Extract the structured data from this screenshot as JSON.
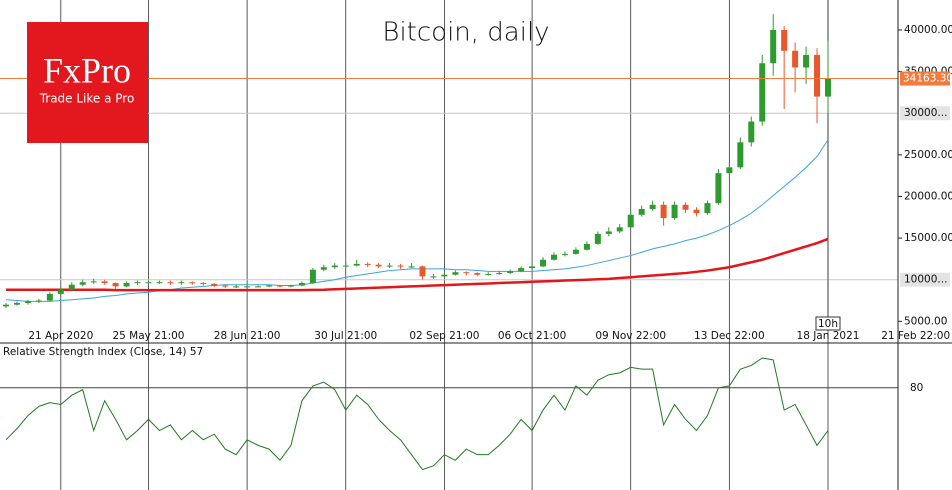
{
  "logo": {
    "name": "FxPro",
    "tagline": "Trade Like a Pro"
  },
  "chart_data": [
    {
      "type": "candlestick",
      "title": "Bitcoin, daily",
      "categories": [
        null,
        null,
        null,
        null,
        null,
        "21 Apr 2020",
        null,
        null,
        null,
        null,
        null,
        null,
        null,
        "25 May 21:00",
        null,
        null,
        null,
        null,
        null,
        null,
        null,
        null,
        "28 Jun 21:00",
        null,
        null,
        null,
        null,
        null,
        null,
        null,
        null,
        "30 Jul 21:00",
        null,
        null,
        null,
        null,
        null,
        null,
        null,
        null,
        "02 Sep 21:00",
        null,
        null,
        null,
        null,
        null,
        null,
        null,
        "06 Oct 21:00",
        null,
        null,
        null,
        null,
        null,
        null,
        null,
        null,
        "09 Nov 22:00",
        null,
        null,
        null,
        null,
        null,
        null,
        null,
        null,
        "13 Dec 22:00",
        null,
        null,
        null,
        null,
        null,
        null,
        null,
        null,
        "18 Jan 2021",
        null,
        null,
        null,
        null,
        null,
        null,
        null,
        "21 Feb 22:00"
      ],
      "open": [
        6800,
        7000,
        7200,
        7400,
        7500,
        8300,
        8800,
        9400,
        9700,
        9800,
        9600,
        9200,
        9600,
        9700,
        9700,
        9700,
        9600,
        9700,
        9600,
        9500,
        9300,
        9200,
        9200,
        9200,
        9200,
        9300,
        9200,
        9300,
        9600,
        11200,
        11500,
        11700,
        11700,
        11900,
        11800,
        11600,
        11700,
        11600,
        11600,
        10400,
        10400,
        10600,
        10900,
        10800,
        10600,
        10700,
        10800,
        11000,
        11400,
        11600,
        12400,
        13000,
        13100,
        13600,
        14300,
        15500,
        15800,
        16300,
        17800,
        18500,
        19000,
        17400,
        19000,
        18400,
        18000,
        19200,
        22800,
        23500,
        26500,
        29000,
        36000,
        40000,
        37500,
        35500,
        37000,
        32000,
        null,
        null,
        null,
        null,
        null,
        null,
        null,
        null
      ],
      "high": [
        7200,
        7400,
        7600,
        7700,
        8500,
        9100,
        9700,
        10000,
        10100,
        10000,
        9700,
        9800,
        9900,
        9900,
        9900,
        9900,
        9900,
        9800,
        9700,
        9600,
        9400,
        9400,
        9400,
        9300,
        9400,
        9400,
        9400,
        9800,
        11400,
        11800,
        12000,
        12100,
        12400,
        12100,
        12000,
        12000,
        11900,
        12000,
        11700,
        10700,
        10800,
        11100,
        11000,
        10900,
        10900,
        11000,
        11200,
        11600,
        11800,
        12700,
        13300,
        13400,
        13900,
        14600,
        15800,
        16300,
        16700,
        18200,
        18900,
        19500,
        19400,
        19400,
        19300,
        18700,
        19500,
        23300,
        24100,
        27100,
        29600,
        37000,
        41900,
        40500,
        38500,
        38000,
        37800,
        38700,
        null,
        null,
        null,
        null,
        null,
        null,
        null,
        null
      ],
      "low": [
        6600,
        6900,
        7000,
        7200,
        7400,
        8100,
        8600,
        9200,
        9500,
        9400,
        8900,
        9100,
        9400,
        9500,
        9500,
        9400,
        9400,
        9400,
        9300,
        9100,
        9000,
        9000,
        9000,
        9100,
        9100,
        9100,
        9100,
        9200,
        9500,
        11000,
        11300,
        11400,
        11600,
        11500,
        11400,
        11400,
        11300,
        11400,
        10000,
        10100,
        10200,
        10500,
        10500,
        10400,
        10500,
        10600,
        10700,
        10900,
        11300,
        11500,
        12300,
        12800,
        13000,
        13500,
        14200,
        15200,
        15600,
        16200,
        17600,
        18300,
        16500,
        17200,
        18000,
        17600,
        17800,
        19000,
        22300,
        23300,
        26000,
        28500,
        34500,
        30500,
        32500,
        33500,
        28800,
        30000,
        null,
        null,
        null,
        null,
        null,
        null,
        null,
        null
      ],
      "close": [
        7000,
        7200,
        7400,
        7500,
        8300,
        8800,
        9400,
        9700,
        9800,
        9600,
        9200,
        9600,
        9700,
        9700,
        9700,
        9600,
        9700,
        9600,
        9500,
        9300,
        9200,
        9200,
        9200,
        9200,
        9300,
        9200,
        9300,
        9600,
        11200,
        11500,
        11700,
        11700,
        11900,
        11800,
        11600,
        11700,
        11600,
        11600,
        10400,
        10400,
        10600,
        10900,
        10800,
        10600,
        10700,
        10800,
        11000,
        11400,
        11600,
        12400,
        13000,
        13100,
        13600,
        14300,
        15500,
        15800,
        16300,
        17800,
        18500,
        19000,
        17400,
        19000,
        18400,
        18000,
        19200,
        22800,
        23500,
        26500,
        29000,
        36000,
        40000,
        37500,
        35500,
        37000,
        32000,
        34163.3,
        null,
        null,
        null,
        null,
        null,
        null,
        null,
        null
      ],
      "up_color": "#2f9a2f",
      "down_color": "#e8582c",
      "series": [
        {
          "color": "#3aa3dc",
          "values": [
            7600,
            7500,
            7400,
            7400,
            7400,
            7500,
            7600,
            7700,
            7800,
            8000,
            8100,
            8300,
            8400,
            8500,
            8700,
            8800,
            9000,
            9100,
            9200,
            9300,
            9400,
            9400,
            9400,
            9400,
            9400,
            9300,
            9300,
            9400,
            9600,
            9800,
            10000,
            10300,
            10500,
            10700,
            10900,
            11100,
            11200,
            11300,
            11300,
            11300,
            11300,
            11200,
            11200,
            11100,
            11000,
            11000,
            11000,
            11000,
            11000,
            11100,
            11200,
            11300,
            11500,
            11700,
            12000,
            12300,
            12600,
            12900,
            13300,
            13700,
            14000,
            14300,
            14700,
            15000,
            15400,
            15900,
            16500,
            17200,
            18000,
            19000,
            20100,
            21200,
            22300,
            23500,
            24800,
            26800,
            null,
            null,
            null,
            null,
            null,
            null,
            null,
            null
          ]
        },
        {
          "color": "#e3161a",
          "values": [
            8800,
            8800,
            8800,
            8800,
            8800,
            8800,
            8800,
            8800,
            8800,
            8800,
            8750,
            8750,
            8750,
            8750,
            8750,
            8750,
            8750,
            8750,
            8750,
            8750,
            8750,
            8750,
            8750,
            8750,
            8750,
            8750,
            8750,
            8750,
            8780,
            8800,
            8850,
            8900,
            8950,
            9000,
            9050,
            9100,
            9150,
            9200,
            9250,
            9300,
            9350,
            9400,
            9450,
            9500,
            9550,
            9600,
            9650,
            9700,
            9750,
            9800,
            9850,
            9900,
            9950,
            10000,
            10050,
            10100,
            10200,
            10300,
            10400,
            10500,
            10600,
            10700,
            10800,
            10950,
            11100,
            11300,
            11500,
            11800,
            12100,
            12400,
            12800,
            13200,
            13600,
            14000,
            14400,
            14900,
            null,
            null,
            null,
            null,
            null,
            null,
            null,
            null
          ]
        }
      ],
      "ylim": [
        4200,
        43600
      ],
      "yticks": [
        {
          "value": 5000,
          "label": "5000.00"
        },
        {
          "value": 15000,
          "label": "15000.00"
        },
        {
          "value": 20000,
          "label": "20000.00"
        },
        {
          "value": 25000,
          "label": "25000.00"
        },
        {
          "value": 35000,
          "label": "35000.00"
        },
        {
          "value": 40000,
          "label": "40000.00"
        }
      ],
      "hlines": [
        {
          "value": 30000,
          "label": "30000..."
        },
        {
          "value": 10000,
          "label": "10000..."
        }
      ],
      "hline_color": "#c8c8c8",
      "last_price": {
        "value": 34163.3,
        "label": "34163.30",
        "color": "#f07b3a"
      },
      "timer_label": "10h"
    },
    {
      "type": "line",
      "title": "Relative Strength Index (Close, 14) 57",
      "color": "#1f7a1f",
      "values": [
        52,
        58,
        65,
        70,
        72,
        71,
        76,
        79,
        57,
        73,
        63,
        52,
        57,
        63,
        57,
        60,
        52,
        57,
        52,
        55,
        47,
        44,
        52,
        49,
        47,
        41,
        49,
        73,
        81,
        83,
        79,
        68,
        76,
        71,
        63,
        57,
        52,
        44,
        36,
        38,
        44,
        41,
        47,
        44,
        44,
        49,
        55,
        63,
        57,
        68,
        76,
        68,
        81,
        76,
        84,
        87,
        88,
        91,
        90,
        90,
        60,
        71,
        63,
        57,
        65,
        80,
        81,
        90,
        92,
        96,
        95,
        68,
        71,
        60,
        49,
        57
      ],
      "ylim": [
        25,
        103
      ],
      "yticks": [
        80
      ]
    }
  ]
}
